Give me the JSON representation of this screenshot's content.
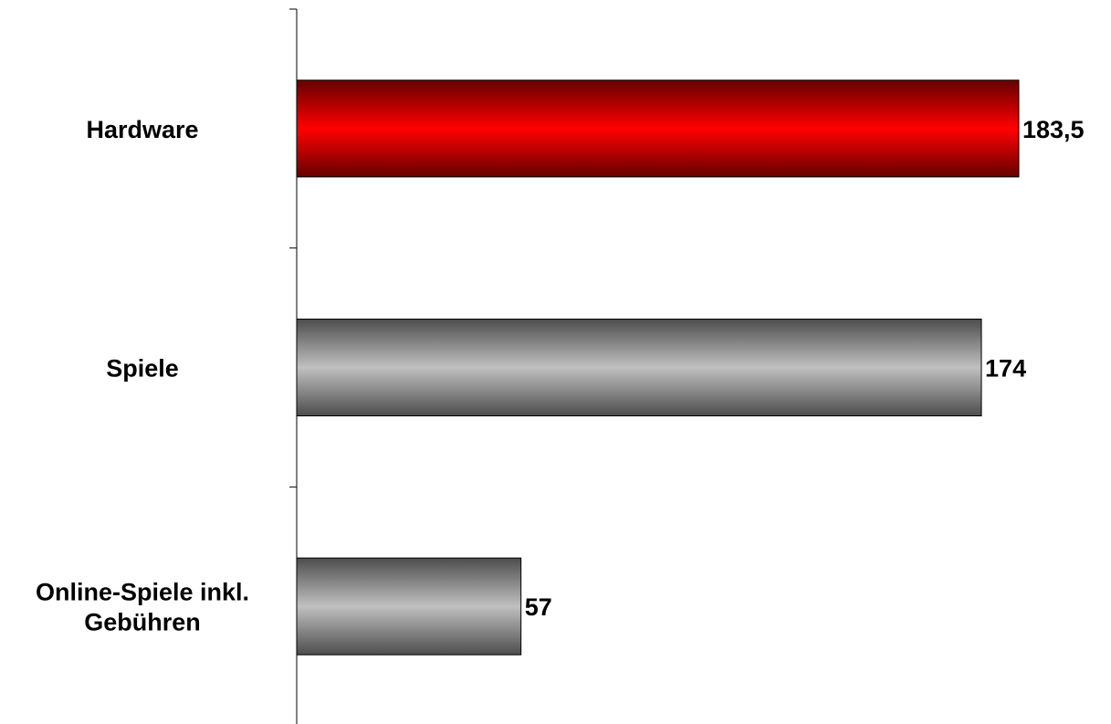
{
  "chart_data": {
    "type": "bar",
    "orientation": "horizontal",
    "categories": [
      [
        "Hardware"
      ],
      [
        "Spiele"
      ],
      [
        "Online-Spiele inkl.",
        "Gebühren"
      ]
    ],
    "values": [
      183.5,
      174,
      57
    ],
    "value_labels": [
      "183,5",
      "174",
      "57"
    ],
    "colors": [
      "#ff0000",
      "#c0c0c0",
      "#c0c0c0"
    ],
    "xlim": [
      0,
      190
    ],
    "title": "",
    "xlabel": "",
    "ylabel": "",
    "grid": false,
    "legend": "none"
  }
}
